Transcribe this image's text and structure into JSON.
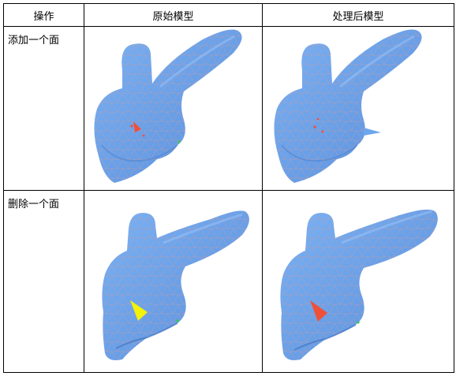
{
  "table": {
    "headers": {
      "operation": "操作",
      "original": "原始模型",
      "processed": "处理后模型"
    },
    "rows": [
      {
        "operation": "添加一个面",
        "highlight_original": "red-marker",
        "highlight_processed": "red-dots"
      },
      {
        "operation": "删除一个面",
        "highlight_original": "yellow-triangle",
        "highlight_processed": "red-triangle"
      }
    ]
  },
  "colors": {
    "mesh_fill": "#6ea6ee",
    "mesh_dark": "#5a8fdc",
    "mesh_line": "#c49aa6",
    "highlight_red": "#f0503a",
    "highlight_yellow": "#f4f10a",
    "marker_green": "#32c850"
  }
}
